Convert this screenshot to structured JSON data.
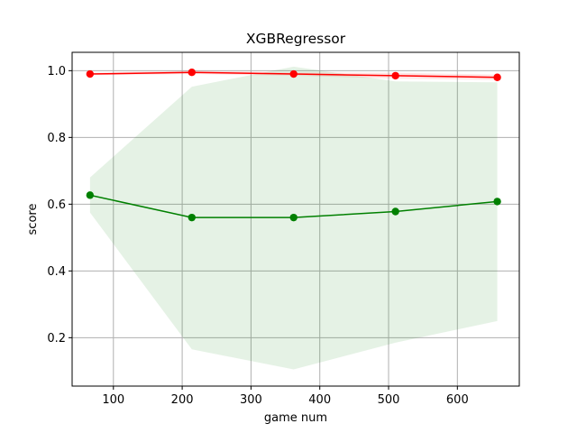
{
  "chart_data": {
    "type": "line",
    "title": "XGBRegressor",
    "xlabel": "game num",
    "ylabel": "score",
    "xlim": [
      40,
      690
    ],
    "ylim": [
      0.055,
      1.055
    ],
    "xticks": [
      100,
      200,
      300,
      400,
      500,
      600
    ],
    "yticks": [
      0.2,
      0.4,
      0.6,
      0.8,
      1.0
    ],
    "xtick_labels": [
      "100",
      "200",
      "300",
      "400",
      "500",
      "600"
    ],
    "ytick_labels": [
      "0.2",
      "0.4",
      "0.6",
      "0.8",
      "1.0"
    ],
    "grid": true,
    "x": [
      66,
      214,
      362,
      510,
      658
    ],
    "series": [
      {
        "color": "#ff0000",
        "values": [
          0.99,
          0.995,
          0.99,
          0.985,
          0.98
        ],
        "band_lower": [
          0.986,
          0.99,
          0.985,
          0.976,
          0.972
        ],
        "band_upper": [
          0.994,
          1.0,
          0.995,
          0.994,
          0.988
        ],
        "band_color": "#ff0000"
      },
      {
        "color": "#008000",
        "values": [
          0.627,
          0.56,
          0.56,
          0.578,
          0.608
        ],
        "band_lower": [
          0.575,
          0.165,
          0.105,
          0.185,
          0.25
        ],
        "band_upper": [
          0.68,
          0.952,
          1.012,
          0.968,
          0.965
        ],
        "band_color": "#008000"
      }
    ]
  }
}
